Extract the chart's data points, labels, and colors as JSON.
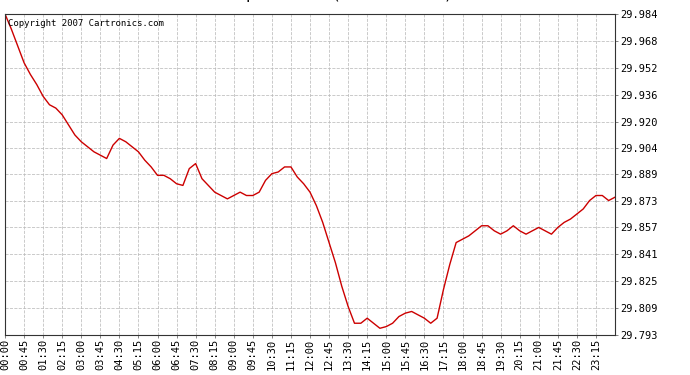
{
  "copyright": "Copyright 2007 Cartronics.com",
  "line_color": "#cc0000",
  "background_color": "#ffffff",
  "plot_bg_color": "#ffffff",
  "grid_color": "#bbbbbb",
  "title_fontsize": 11,
  "tick_fontsize": 7.5,
  "copyright_fontsize": 6.5,
  "yticks": [
    29.793,
    29.809,
    29.825,
    29.841,
    29.857,
    29.873,
    29.889,
    29.904,
    29.92,
    29.936,
    29.952,
    29.968,
    29.984
  ],
  "ylim": [
    29.793,
    29.984
  ],
  "xtick_labels": [
    "00:00",
    "00:45",
    "01:30",
    "02:15",
    "03:00",
    "03:45",
    "04:30",
    "05:15",
    "06:00",
    "06:45",
    "07:30",
    "08:15",
    "09:00",
    "09:45",
    "10:30",
    "11:15",
    "12:00",
    "12:45",
    "13:30",
    "14:15",
    "15:00",
    "15:45",
    "16:30",
    "17:15",
    "18:00",
    "18:45",
    "19:30",
    "20:15",
    "21:00",
    "21:45",
    "22:30",
    "23:15"
  ],
  "pressure_data": [
    [
      0,
      29.984
    ],
    [
      15,
      29.975
    ],
    [
      30,
      29.965
    ],
    [
      45,
      29.955
    ],
    [
      60,
      29.948
    ],
    [
      75,
      29.942
    ],
    [
      90,
      29.935
    ],
    [
      105,
      29.93
    ],
    [
      120,
      29.928
    ],
    [
      135,
      29.924
    ],
    [
      150,
      29.918
    ],
    [
      165,
      29.912
    ],
    [
      180,
      29.908
    ],
    [
      195,
      29.905
    ],
    [
      210,
      29.902
    ],
    [
      225,
      29.9
    ],
    [
      240,
      29.898
    ],
    [
      255,
      29.906
    ],
    [
      270,
      29.91
    ],
    [
      285,
      29.908
    ],
    [
      300,
      29.905
    ],
    [
      315,
      29.902
    ],
    [
      330,
      29.897
    ],
    [
      345,
      29.893
    ],
    [
      360,
      29.888
    ],
    [
      375,
      29.888
    ],
    [
      390,
      29.886
    ],
    [
      405,
      29.883
    ],
    [
      420,
      29.882
    ],
    [
      435,
      29.892
    ],
    [
      450,
      29.895
    ],
    [
      465,
      29.886
    ],
    [
      480,
      29.882
    ],
    [
      495,
      29.878
    ],
    [
      510,
      29.876
    ],
    [
      525,
      29.874
    ],
    [
      540,
      29.876
    ],
    [
      555,
      29.878
    ],
    [
      570,
      29.876
    ],
    [
      585,
      29.876
    ],
    [
      600,
      29.878
    ],
    [
      615,
      29.885
    ],
    [
      630,
      29.889
    ],
    [
      645,
      29.89
    ],
    [
      660,
      29.893
    ],
    [
      675,
      29.893
    ],
    [
      690,
      29.887
    ],
    [
      705,
      29.883
    ],
    [
      720,
      29.878
    ],
    [
      735,
      29.87
    ],
    [
      750,
      29.86
    ],
    [
      765,
      29.848
    ],
    [
      780,
      29.836
    ],
    [
      795,
      29.822
    ],
    [
      810,
      29.81
    ],
    [
      825,
      29.8
    ],
    [
      840,
      29.8
    ],
    [
      855,
      29.803
    ],
    [
      870,
      29.8
    ],
    [
      885,
      29.797
    ],
    [
      900,
      29.798
    ],
    [
      915,
      29.8
    ],
    [
      930,
      29.804
    ],
    [
      945,
      29.806
    ],
    [
      960,
      29.807
    ],
    [
      975,
      29.805
    ],
    [
      990,
      29.803
    ],
    [
      1005,
      29.8
    ],
    [
      1020,
      29.803
    ],
    [
      1035,
      29.82
    ],
    [
      1050,
      29.835
    ],
    [
      1065,
      29.848
    ],
    [
      1080,
      29.85
    ],
    [
      1095,
      29.852
    ],
    [
      1110,
      29.855
    ],
    [
      1125,
      29.858
    ],
    [
      1140,
      29.858
    ],
    [
      1155,
      29.855
    ],
    [
      1170,
      29.853
    ],
    [
      1185,
      29.855
    ],
    [
      1200,
      29.858
    ],
    [
      1215,
      29.855
    ],
    [
      1230,
      29.853
    ],
    [
      1245,
      29.855
    ],
    [
      1260,
      29.857
    ],
    [
      1275,
      29.855
    ],
    [
      1290,
      29.853
    ],
    [
      1305,
      29.857
    ],
    [
      1320,
      29.86
    ],
    [
      1335,
      29.862
    ],
    [
      1350,
      29.865
    ],
    [
      1365,
      29.868
    ],
    [
      1380,
      29.873
    ],
    [
      1395,
      29.876
    ],
    [
      1410,
      29.876
    ],
    [
      1425,
      29.873
    ],
    [
      1440,
      29.875
    ]
  ]
}
